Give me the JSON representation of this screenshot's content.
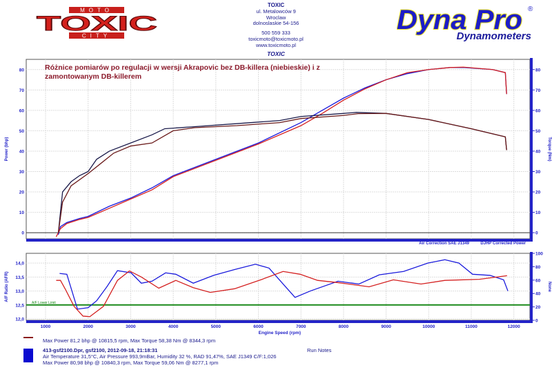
{
  "header": {
    "left_logo": {
      "top": "MOTO",
      "main": "TOXIC",
      "bottom": "CITY"
    },
    "shop": {
      "name": "TOXIC",
      "street": "ul. Metalowców 9",
      "city": "Wroclaw",
      "region": "dolnoslaskie 54-156",
      "phone": "500 559 333",
      "email": "toxicmoto@toxicmoto.pl",
      "web": "www.toxicmoto.pl",
      "label": "TOXIC"
    },
    "right_logo": {
      "main": "Dyna Pro",
      "sub": "Dynamometers",
      "mark": "®"
    }
  },
  "colors": {
    "blue_run": "#1a1adc",
    "red_run": "#d42020",
    "torque_blue": "#1a1a4a",
    "torque_red": "#6a1a1a",
    "afr_limit": "#1a8a1a",
    "axis": "#2323c8"
  },
  "chart_data": [
    {
      "type": "line",
      "title": "Różnice pomiarów po regulacji w wersji Akrapovic bez DB-killera (niebieskie) i z zamontowanym DB-killerem",
      "ylabel": "Power (bhp)",
      "y2label": "Torque (Nm)",
      "ylim": [
        -3,
        85
      ],
      "y2lim": [
        -3,
        85
      ],
      "yticks": [
        0,
        10,
        20,
        30,
        40,
        50,
        60,
        70,
        80
      ],
      "xlim": [
        700,
        12500
      ],
      "grid": true,
      "notes": [
        "Air Correction SAE J1349",
        "DJHP Corrected Power"
      ],
      "series": [
        {
          "color": "#1a1adc",
          "axis": "left",
          "x": [
            1300,
            1350,
            1500,
            1800,
            2000,
            2500,
            3000,
            3500,
            4000,
            5000,
            6000,
            7000,
            7500,
            8000,
            8500,
            9000,
            9500,
            10000,
            10500,
            10840,
            11500,
            11800,
            11830
          ],
          "y": [
            -1,
            3,
            5,
            7,
            8,
            13,
            17,
            22,
            28,
            36,
            44,
            54,
            60,
            66,
            71,
            75,
            78,
            80,
            81,
            81,
            80,
            78.5,
            68
          ]
        },
        {
          "color": "#d42020",
          "axis": "left",
          "x": [
            1250,
            1350,
            1500,
            1800,
            2000,
            2500,
            3000,
            3500,
            4000,
            5000,
            6000,
            7000,
            7500,
            8000,
            8500,
            9000,
            9500,
            10000,
            10500,
            10815,
            11500,
            11800,
            11830
          ],
          "y": [
            -2,
            2,
            4.5,
            6.5,
            7.5,
            12,
            16.5,
            21,
            27.5,
            35.5,
            43.5,
            52.5,
            58.5,
            65,
            70.5,
            75,
            78.5,
            80,
            81,
            81.2,
            80,
            78.5,
            68
          ]
        },
        {
          "color": "#1a1a4a",
          "axis": "right",
          "x": [
            1300,
            1350,
            1400,
            1600,
            1800,
            2000,
            2200,
            2500,
            3000,
            3500,
            3800,
            4500,
            5500,
            6500,
            7000,
            8000,
            8300,
            9000,
            10000,
            11000,
            11800,
            11830
          ],
          "y": [
            0,
            10,
            20,
            25,
            28,
            30,
            36,
            40,
            44,
            48,
            51,
            52,
            53.5,
            55,
            57,
            58.5,
            59,
            58.5,
            55.5,
            51,
            47,
            40.5
          ]
        },
        {
          "color": "#6a1a1a",
          "axis": "right",
          "x": [
            1300,
            1400,
            1600,
            2000,
            2300,
            2600,
            3000,
            3500,
            4000,
            4500,
            5500,
            6500,
            7000,
            8000,
            8344,
            9000,
            10000,
            11000,
            11800,
            11830
          ],
          "y": [
            0,
            15,
            23,
            29,
            34,
            39,
            42.5,
            44,
            50,
            51.5,
            52.5,
            54,
            56,
            57.5,
            58.4,
            58.5,
            55.5,
            51,
            47,
            40.5
          ]
        }
      ]
    },
    {
      "type": "line",
      "ylabel": "A/F Ratio (AFR)",
      "y2label": "None",
      "xlabel": "Engine Speed (rpm)",
      "ylim": [
        11.95,
        14.35
      ],
      "yticks": [
        12.0,
        12.5,
        13.0,
        13.5,
        14.0
      ],
      "ytick_labels": [
        "12,0",
        "12,5",
        "13,0",
        "13,5",
        "14,0"
      ],
      "y2lim": [
        0,
        100
      ],
      "y2ticks": [
        0,
        20,
        40,
        60,
        80,
        100
      ],
      "xticks": [
        1000,
        2000,
        3000,
        4000,
        5000,
        6000,
        7000,
        8000,
        9000,
        10000,
        11000,
        12000
      ],
      "limit": {
        "label": "A/F Lower Limit",
        "value": 12.5
      },
      "series": [
        {
          "color": "#1a1adc",
          "x": [
            1330,
            1500,
            1750,
            2000,
            2200,
            2440,
            2690,
            3010,
            3250,
            3500,
            3820,
            4060,
            4470,
            4950,
            5440,
            5930,
            6250,
            6580,
            6860,
            7220,
            7870,
            8360,
            8840,
            9410,
            9980,
            10380,
            10710,
            11030,
            11440,
            11760,
            11860
          ],
          "y": [
            13.63,
            13.6,
            12.35,
            12.4,
            12.65,
            13.15,
            13.73,
            13.65,
            13.28,
            13.35,
            13.65,
            13.6,
            13.28,
            13.56,
            13.77,
            13.96,
            13.82,
            13.25,
            12.77,
            13.0,
            13.35,
            13.25,
            13.58,
            13.7,
            14.0,
            14.12,
            14.0,
            13.6,
            13.56,
            13.4,
            13.0
          ]
        },
        {
          "color": "#d42020",
          "x": [
            1250,
            1350,
            1470,
            1670,
            1880,
            2040,
            2360,
            2690,
            2970,
            3250,
            3660,
            4060,
            4470,
            4870,
            5440,
            6090,
            6580,
            6980,
            7390,
            7870,
            8600,
            9170,
            9820,
            10380,
            11190,
            11840
          ],
          "y": [
            13.38,
            13.38,
            13.05,
            12.45,
            12.1,
            12.08,
            12.45,
            13.38,
            13.72,
            13.5,
            13.1,
            13.38,
            13.12,
            12.95,
            13.08,
            13.42,
            13.7,
            13.6,
            13.38,
            13.3,
            13.15,
            13.4,
            13.25,
            13.38,
            13.42,
            13.55
          ]
        }
      ]
    }
  ],
  "legend": {
    "run1": {
      "stats": "Max Power 81,2 bhp @ 10815,5 rpm, Max Torque 58,38 Nm @ 8344,3 rpm"
    },
    "run2": {
      "name": "413-gsf2100.Dpr,   gsf2100,   2012-09-18,   21:18:31",
      "conditions": "Air Temperature 31,5°C, Air Pressure 993,9mBar, Humidity 32 %, RAD 91,47%,    SAE J1349  C/F:1,026",
      "stats": "Max Power 80,98 bhp @ 10840,3 rpm, Max Torque 59,06 Nm @ 8277,1 rpm"
    },
    "run_notes": "Run Notes"
  }
}
